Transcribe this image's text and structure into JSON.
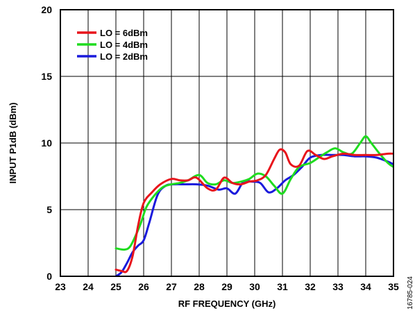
{
  "chart_data": {
    "type": "line",
    "title": "",
    "xlabel": "RF FREQUENCY (GHz)",
    "ylabel": "INPUT P1dB (dBm)",
    "xlim": [
      23,
      35
    ],
    "ylim": [
      0,
      20
    ],
    "xticks": [
      23,
      24,
      25,
      26,
      27,
      28,
      29,
      30,
      31,
      32,
      33,
      34,
      35
    ],
    "yticks": [
      0,
      5,
      10,
      15,
      20
    ],
    "grid": true,
    "legend_position": "top-left",
    "figure_id": "16785-024",
    "series": [
      {
        "name": "LO = 6dBm",
        "color": "#e8141b",
        "x": [
          25.0,
          25.2,
          25.4,
          25.6,
          25.8,
          26.0,
          26.3,
          26.6,
          27.0,
          27.3,
          27.6,
          27.9,
          28.3,
          28.6,
          28.9,
          29.2,
          29.5,
          29.8,
          30.1,
          30.4,
          30.7,
          30.9,
          31.1,
          31.3,
          31.6,
          31.9,
          32.2,
          32.5,
          32.8,
          33.2,
          33.6,
          34.0,
          34.4,
          34.8,
          35.0
        ],
        "y": [
          0.5,
          0.4,
          0.4,
          1.5,
          3.8,
          5.5,
          6.3,
          6.9,
          7.3,
          7.2,
          7.2,
          7.4,
          6.6,
          6.5,
          7.4,
          7.0,
          6.9,
          7.1,
          7.2,
          7.6,
          8.8,
          9.5,
          9.3,
          8.4,
          8.3,
          9.4,
          9.1,
          8.8,
          9.0,
          9.2,
          9.1,
          9.1,
          9.1,
          9.2,
          9.2
        ]
      },
      {
        "name": "LO = 4dBm",
        "color": "#1fdc1f",
        "x": [
          25.0,
          25.3,
          25.5,
          25.7,
          25.9,
          26.1,
          26.4,
          26.7,
          27.0,
          27.3,
          27.6,
          28.0,
          28.3,
          28.6,
          28.9,
          29.2,
          29.5,
          29.8,
          30.1,
          30.4,
          30.7,
          31.0,
          31.3,
          31.6,
          32.0,
          32.3,
          32.6,
          32.9,
          33.2,
          33.5,
          33.8,
          34.0,
          34.2,
          34.5,
          34.8,
          35.0
        ],
        "y": [
          2.1,
          2.0,
          2.2,
          3.0,
          4.0,
          5.2,
          6.1,
          6.7,
          6.9,
          7.0,
          7.2,
          7.6,
          7.0,
          6.9,
          7.2,
          7.0,
          7.1,
          7.3,
          7.7,
          7.5,
          6.8,
          6.2,
          7.3,
          8.2,
          8.5,
          8.9,
          9.3,
          9.6,
          9.3,
          9.2,
          10.0,
          10.5,
          10.0,
          9.2,
          8.5,
          8.2
        ]
      },
      {
        "name": "LO = 2dBm",
        "color": "#1a1adc",
        "x": [
          25.0,
          25.2,
          25.4,
          25.6,
          25.8,
          26.0,
          26.2,
          26.5,
          26.8,
          27.1,
          27.5,
          27.9,
          28.3,
          28.7,
          29.0,
          29.3,
          29.6,
          29.9,
          30.2,
          30.5,
          30.8,
          31.1,
          31.4,
          31.7,
          32.0,
          32.4,
          32.8,
          33.2,
          33.6,
          34.0,
          34.4,
          34.8,
          35.0
        ],
        "y": [
          0.0,
          0.3,
          1.0,
          1.8,
          2.3,
          2.7,
          4.0,
          6.1,
          6.8,
          6.9,
          6.9,
          6.9,
          6.8,
          6.5,
          6.6,
          6.2,
          7.1,
          7.1,
          7.0,
          6.3,
          6.6,
          7.2,
          7.6,
          8.2,
          8.9,
          9.1,
          9.1,
          9.1,
          9.0,
          9.0,
          8.9,
          8.6,
          8.4
        ]
      }
    ]
  }
}
